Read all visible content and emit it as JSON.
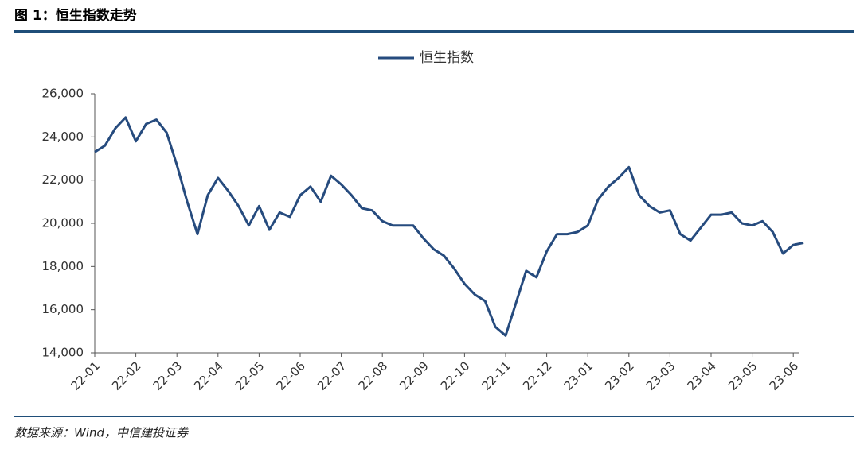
{
  "chart_data": {
    "type": "line",
    "title": "图 1：恒生指数走势",
    "source": "数据来源：Wind，中信建投证券",
    "categories": [
      "22-01",
      null,
      null,
      null,
      "22-02",
      null,
      null,
      null,
      "22-03",
      null,
      null,
      null,
      "22-04",
      null,
      null,
      null,
      "22-05",
      null,
      null,
      null,
      "22-06",
      null,
      null,
      null,
      "22-07",
      null,
      null,
      null,
      "22-08",
      null,
      null,
      null,
      "22-09",
      null,
      null,
      null,
      "22-10",
      null,
      null,
      null,
      "22-11",
      null,
      null,
      null,
      "22-12",
      null,
      null,
      null,
      "23-01",
      null,
      null,
      null,
      "23-02",
      null,
      null,
      null,
      "23-03",
      null,
      null,
      null,
      "23-04",
      null,
      null,
      null,
      "23-05",
      null,
      null,
      null,
      "23-06",
      null
    ],
    "series": [
      {
        "name": "恒生指数",
        "color": "#264b7e",
        "values": [
          23300,
          23600,
          24400,
          24900,
          23800,
          24600,
          24800,
          24200,
          22700,
          21000,
          19500,
          21300,
          22100,
          21500,
          20800,
          19900,
          20800,
          19700,
          20500,
          20300,
          21300,
          21700,
          21000,
          22200,
          21800,
          21300,
          20700,
          20600,
          20100,
          19900,
          19900,
          19900,
          19300,
          18800,
          18500,
          17900,
          17200,
          16700,
          16400,
          15200,
          14800,
          16300,
          17800,
          17500,
          18700,
          19500,
          19500,
          19600,
          19900,
          21100,
          21700,
          22100,
          22600,
          21300,
          20800,
          20500,
          20600,
          19500,
          19200,
          19800,
          20400,
          20400,
          20500,
          20000,
          19900,
          20100,
          19600,
          18600,
          19000,
          19100
        ]
      }
    ],
    "ylim": [
      14000,
      26000
    ],
    "yticks": [
      {
        "value": 14000,
        "label": "14,000"
      },
      {
        "value": 16000,
        "label": "16,000"
      },
      {
        "value": 18000,
        "label": "18,000"
      },
      {
        "value": 20000,
        "label": "20,000"
      },
      {
        "value": 22000,
        "label": "22,000"
      },
      {
        "value": 24000,
        "label": "24,000"
      },
      {
        "value": 26000,
        "label": "26,000"
      }
    ],
    "grid": false,
    "legend": "top"
  }
}
